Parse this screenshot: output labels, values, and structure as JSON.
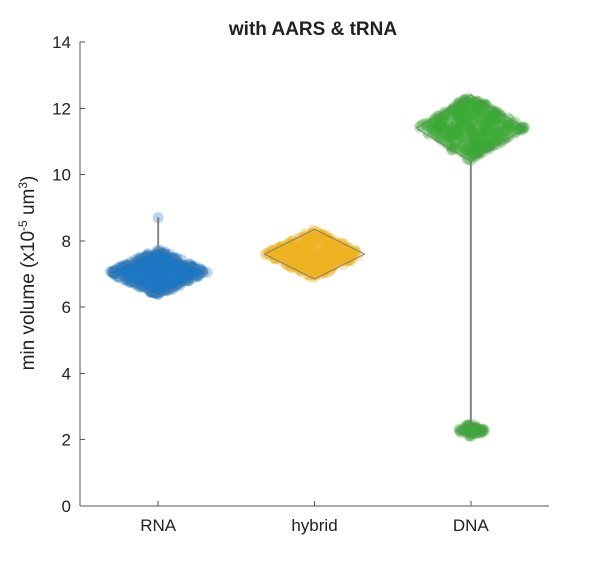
{
  "chart_data": {
    "type": "violin-swarm",
    "title": "with AARS & tRNA",
    "ylabel": {
      "prefix": "min  volume  (x10",
      "exp1": "-5",
      "mid": "  um",
      "exp2": "3",
      "suffix": ")"
    },
    "ylim": [
      0,
      14
    ],
    "yticks": [
      0,
      2,
      4,
      6,
      8,
      10,
      12,
      14
    ],
    "categories": [
      "RNA",
      "hybrid",
      "DNA"
    ],
    "series": [
      {
        "category": "RNA",
        "color": "#1f77c4",
        "min": 6.35,
        "max": 8.7,
        "clusters": [
          {
            "center": 7.05,
            "half_range": 0.72,
            "count": 520,
            "peak_halfwidth_x": 0.32
          }
        ],
        "outliers": [
          8.7
        ]
      },
      {
        "category": "hybrid",
        "color": "#efb421",
        "min": 6.85,
        "max": 8.35,
        "clusters": [
          {
            "center": 7.6,
            "half_range": 0.75,
            "count": 420,
            "peak_halfwidth_x": 0.32
          }
        ],
        "outliers": []
      },
      {
        "category": "DNA",
        "color": "#3aa935",
        "min": 2.1,
        "max": 12.4,
        "clusters": [
          {
            "center": 11.4,
            "half_range": 1.0,
            "count": 420,
            "peak_halfwidth_x": 0.35
          },
          {
            "center": 2.28,
            "half_range": 0.2,
            "count": 60,
            "peak_halfwidth_x": 0.1
          }
        ],
        "outliers": []
      }
    ],
    "grid": false,
    "legend": "none"
  }
}
